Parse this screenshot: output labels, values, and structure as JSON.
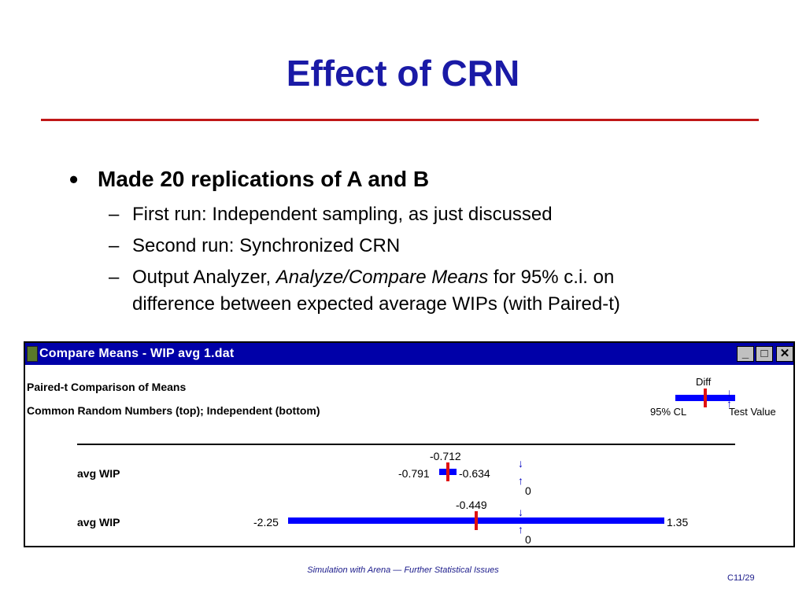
{
  "slide": {
    "title": "Effect of CRN",
    "bullet": "Made 20 replications of A and B",
    "subs": [
      "First run: Independent sampling, as just discussed",
      "Second run: Synchronized CRN"
    ],
    "sub3_prefix": "Output Analyzer, ",
    "sub3_italic": "Analyze/Compare Means",
    "sub3_suffix": " for 95% c.i. on",
    "sub3_line2": "difference between expected average WIPs (with Paired-t)",
    "footer": "Simulation with Arena — Further Statistical Issues",
    "page": "C11/29"
  },
  "window": {
    "title": "Compare Means - WIP avg 1.dat",
    "buttons": {
      "minimize": "_",
      "maximize": "□",
      "close": "✕"
    },
    "header_line1": "Paired-t Comparison of Means",
    "header_line2": "Common Random Numbers (top); Independent (bottom)",
    "legend": {
      "diff": "Diff",
      "cl": "95% CL",
      "test_value": "Test Value"
    },
    "arrow_down": "↓",
    "arrow_up": "↑",
    "rows": [
      {
        "label": "avg WIP",
        "mean": "-0.712",
        "low": "-0.791",
        "high": "-0.634",
        "zero": "0"
      },
      {
        "label": "avg WIP",
        "mean": "-0.449",
        "low": "-2.25",
        "high": "1.35",
        "zero": "0"
      }
    ]
  },
  "colors": {
    "title": "#1a1aa6",
    "rule": "#c01818",
    "titlebar": "#0000a8",
    "ci_bar": "#0000ff",
    "mean_mark": "#e01010"
  }
}
